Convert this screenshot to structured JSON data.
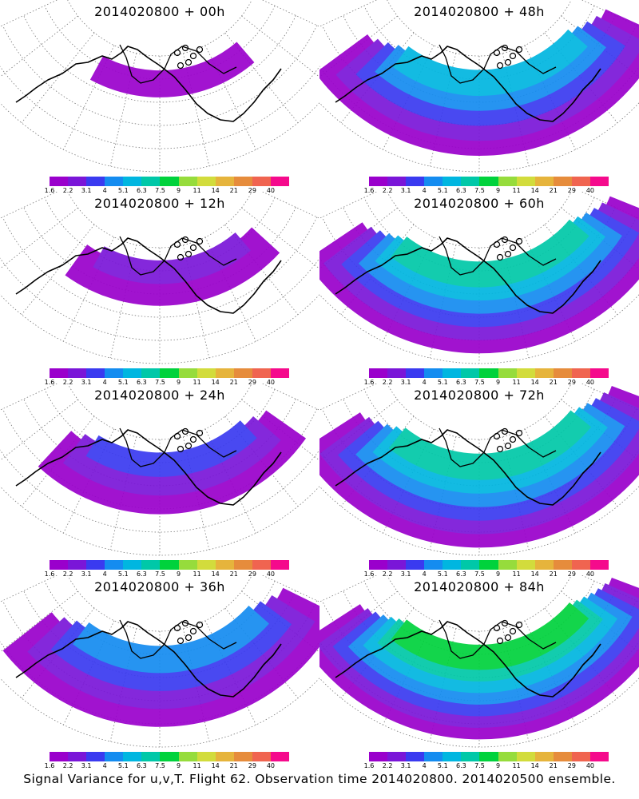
{
  "panels": [
    {
      "title": "2014020800 + 00h",
      "coverage": 0.15,
      "intensity": 0.05
    },
    {
      "title": "2014020800 + 48h",
      "coverage": 0.85,
      "intensity": 0.4
    },
    {
      "title": "2014020800 + 12h",
      "coverage": 0.35,
      "intensity": 0.1
    },
    {
      "title": "2014020800 + 60h",
      "coverage": 0.92,
      "intensity": 0.5
    },
    {
      "title": "2014020800 + 24h",
      "coverage": 0.55,
      "intensity": 0.18
    },
    {
      "title": "2014020800 + 72h",
      "coverage": 0.95,
      "intensity": 0.55
    },
    {
      "title": "2014020800 + 36h",
      "coverage": 0.8,
      "intensity": 0.28
    },
    {
      "title": "2014020800 + 84h",
      "coverage": 0.95,
      "intensity": 0.62
    }
  ],
  "colorbar": {
    "colors": [
      "#9a00cc",
      "#7a16d8",
      "#3a3af0",
      "#148cf0",
      "#00b6e0",
      "#00c8a8",
      "#00d23c",
      "#96dc3c",
      "#d2dc3c",
      "#e6b43c",
      "#e68c3c",
      "#f06450",
      "#f50a8c"
    ],
    "labels": [
      "1.6",
      "2.2",
      "3.1",
      "4",
      "5.1",
      "6.3",
      "7.5",
      "9",
      "11",
      "14",
      "21",
      "29",
      "40"
    ]
  },
  "caption": "Signal Variance for u,v,T. Flight 62. Observation time 2014020800. 2014020500 ensemble."
}
